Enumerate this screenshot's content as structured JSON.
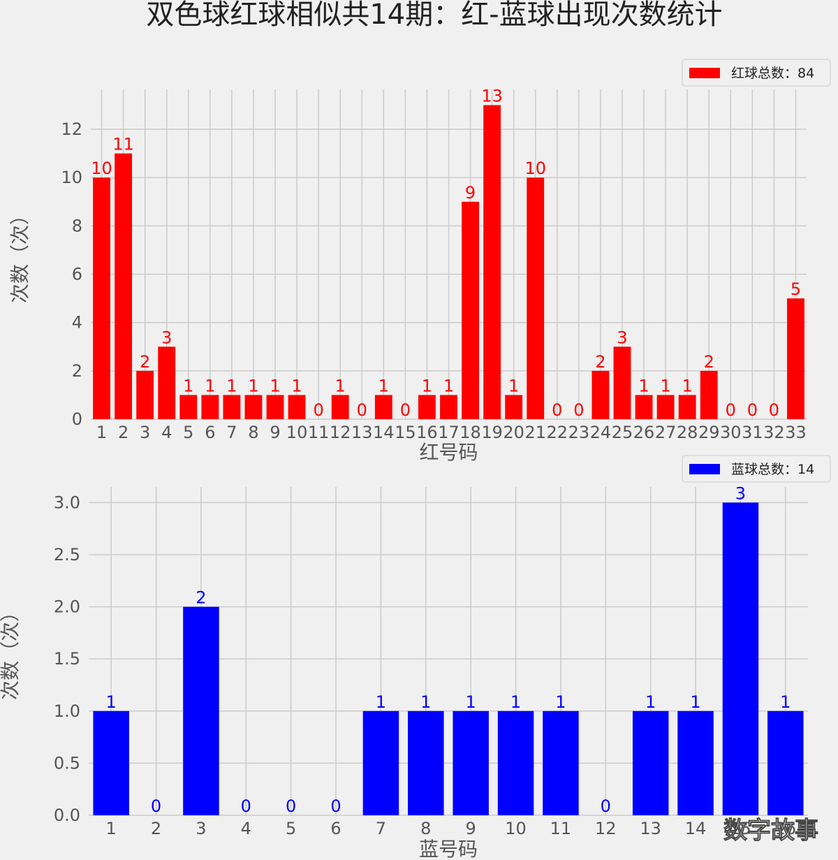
{
  "title": "双色球红球相似共14期：红-蓝球出现次数统计",
  "watermark": "数字故事",
  "colors": {
    "background": "#f0f0f0",
    "grid": "#cbcbcb",
    "axis_text": "#555555",
    "red": "#ff0000",
    "blue": "#0000ff"
  },
  "chart_data": [
    {
      "type": "bar",
      "xlabel": "红号码",
      "ylabel": "次数（次）",
      "legend": "红球总数：84",
      "legend_position": "top-right",
      "grid": true,
      "color": "#ff0000",
      "categories": [
        "1",
        "2",
        "3",
        "4",
        "5",
        "6",
        "7",
        "8",
        "9",
        "10",
        "11",
        "12",
        "13",
        "14",
        "15",
        "16",
        "17",
        "18",
        "19",
        "20",
        "21",
        "22",
        "23",
        "24",
        "25",
        "26",
        "27",
        "28",
        "29",
        "30",
        "31",
        "32",
        "33"
      ],
      "values": [
        10,
        11,
        2,
        3,
        1,
        1,
        1,
        1,
        1,
        1,
        0,
        1,
        0,
        1,
        0,
        1,
        1,
        9,
        13,
        1,
        10,
        0,
        0,
        2,
        3,
        1,
        1,
        1,
        2,
        0,
        0,
        0,
        5
      ],
      "ylim": [
        0,
        13.65
      ],
      "yticks": [
        "0",
        "2",
        "4",
        "6",
        "8",
        "10",
        "12"
      ],
      "ytick_values": [
        0,
        2,
        4,
        6,
        8,
        10,
        12
      ]
    },
    {
      "type": "bar",
      "xlabel": "蓝号码",
      "ylabel": "次数（次）",
      "legend": "蓝球总数：14",
      "legend_position": "top-right",
      "grid": true,
      "color": "#0000ff",
      "categories": [
        "1",
        "2",
        "3",
        "4",
        "5",
        "6",
        "7",
        "8",
        "9",
        "10",
        "11",
        "12",
        "13",
        "14",
        "15",
        "16"
      ],
      "values": [
        1,
        0,
        2,
        0,
        0,
        0,
        1,
        1,
        1,
        1,
        1,
        0,
        1,
        1,
        3,
        1
      ],
      "ylim": [
        0,
        3.15
      ],
      "yticks": [
        "0.0",
        "0.5",
        "1.0",
        "1.5",
        "2.0",
        "2.5",
        "3.0"
      ],
      "ytick_values": [
        0,
        0.5,
        1,
        1.5,
        2,
        2.5,
        3
      ]
    }
  ]
}
